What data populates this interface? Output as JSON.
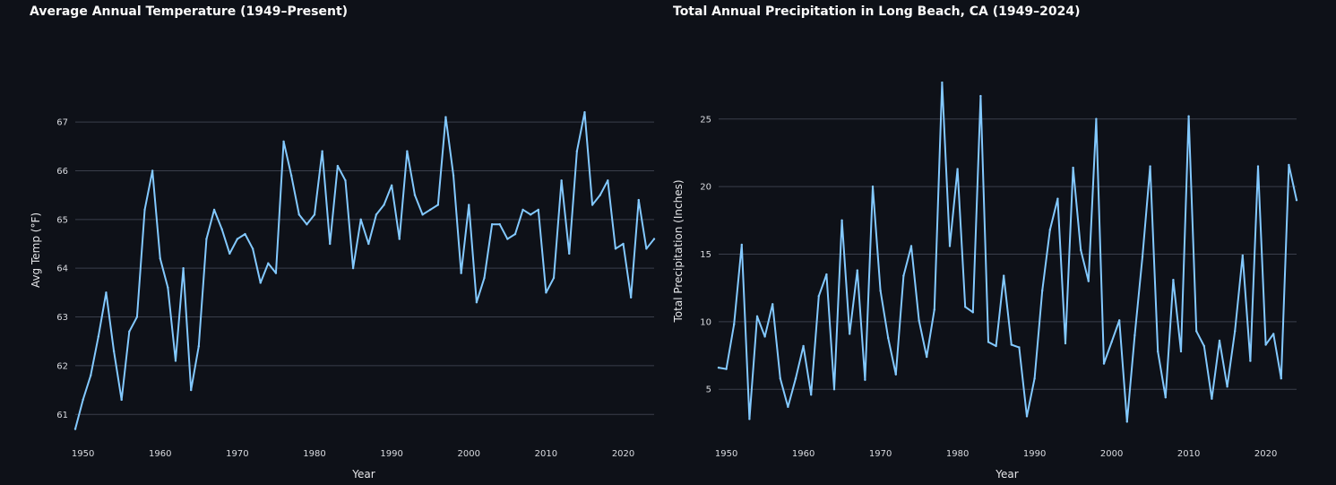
{
  "colors": {
    "background": "#0e1118",
    "line": "#83c9ff",
    "grid": "#3a3f4b",
    "text": "#fafafa"
  },
  "chart_data": [
    {
      "type": "line",
      "title": "Average Annual Temperature (1949–Present)",
      "xlabel": "Year",
      "ylabel": "Avg Temp (°F)",
      "xlim": [
        1949,
        2024
      ],
      "ylim": [
        60.6,
        68.4
      ],
      "xticks": [
        1950,
        1960,
        1970,
        1980,
        1990,
        2000,
        2010,
        2020
      ],
      "yticks": [
        61,
        62,
        63,
        64,
        65,
        66,
        67
      ],
      "grid": true,
      "series": [
        {
          "x": [
            1949,
            1950,
            1951,
            1952,
            1953,
            1954,
            1955,
            1956,
            1957,
            1958,
            1959,
            1960,
            1961,
            1962,
            1963,
            1964,
            1965,
            1966,
            1967,
            1968,
            1969,
            1970,
            1971,
            1972,
            1973,
            1974,
            1975,
            1976,
            1977,
            1978,
            1979,
            1980,
            1981,
            1982,
            1983,
            1984,
            1985,
            1986,
            1987,
            1988,
            1989,
            1990,
            1991,
            1992,
            1993,
            1994,
            1995,
            1996,
            1997,
            1998,
            1999,
            2000,
            2001,
            2002,
            2003,
            2004,
            2005,
            2006,
            2007,
            2008,
            2009,
            2010,
            2011,
            2012,
            2013,
            2014,
            2015,
            2016,
            2017,
            2018,
            2019,
            2020,
            2021,
            2022,
            2023,
            2024
          ],
          "values": [
            60.7,
            61.3,
            61.8,
            62.6,
            63.5,
            62.3,
            61.3,
            62.7,
            63.0,
            65.2,
            66.0,
            64.2,
            63.6,
            62.1,
            64.0,
            61.5,
            62.4,
            64.6,
            65.2,
            64.8,
            64.3,
            64.6,
            64.7,
            64.4,
            63.7,
            64.1,
            63.9,
            66.6,
            65.9,
            65.1,
            64.9,
            65.1,
            66.4,
            64.5,
            66.1,
            65.8,
            64.0,
            65.0,
            64.5,
            65.1,
            65.3,
            65.7,
            64.6,
            66.4,
            65.5,
            65.1,
            65.2,
            65.3,
            67.1,
            65.9,
            63.9,
            65.3,
            63.3,
            63.8,
            64.9,
            64.9,
            64.6,
            64.7,
            65.2,
            65.1,
            65.2,
            63.5,
            63.8,
            65.8,
            64.3,
            66.4,
            67.2,
            65.3,
            65.5,
            65.8,
            64.4,
            64.5,
            63.4,
            65.4,
            64.4,
            64.6
          ]
        }
      ]
    },
    {
      "type": "line",
      "title": "Total Annual Precipitation in Long Beach, CA (1949–2024)",
      "xlabel": "Year",
      "ylabel": "Total Precipitation (Inches)",
      "xlim": [
        1949,
        2024
      ],
      "ylim": [
        1.5,
        28.5
      ],
      "xticks": [
        1950,
        1960,
        1970,
        1980,
        1990,
        2000,
        2010,
        2020
      ],
      "yticks": [
        5,
        10,
        15,
        20,
        25
      ],
      "grid": true,
      "series": [
        {
          "x": [
            1949,
            1950,
            1951,
            1952,
            1953,
            1954,
            1955,
            1956,
            1957,
            1958,
            1959,
            1960,
            1961,
            1962,
            1963,
            1964,
            1965,
            1966,
            1967,
            1968,
            1969,
            1970,
            1971,
            1972,
            1973,
            1974,
            1975,
            1976,
            1977,
            1978,
            1979,
            1980,
            1981,
            1982,
            1983,
            1984,
            1985,
            1986,
            1987,
            1988,
            1989,
            1990,
            1991,
            1992,
            1993,
            1994,
            1995,
            1996,
            1997,
            1998,
            1999,
            2000,
            2001,
            2002,
            2003,
            2004,
            2005,
            2006,
            2007,
            2008,
            2009,
            2010,
            2011,
            2012,
            2013,
            2014,
            2015,
            2016,
            2017,
            2018,
            2019,
            2020,
            2021,
            2022,
            2023,
            2024
          ],
          "values": [
            6.6,
            6.5,
            9.8,
            15.7,
            2.8,
            10.4,
            8.9,
            11.3,
            5.8,
            3.7,
            5.8,
            8.2,
            4.6,
            11.9,
            13.5,
            5.0,
            17.5,
            9.1,
            13.8,
            5.7,
            20.0,
            12.3,
            8.8,
            6.1,
            13.4,
            15.6,
            10.1,
            7.4,
            10.9,
            27.7,
            15.6,
            21.3,
            11.1,
            10.7,
            26.7,
            8.5,
            8.2,
            13.4,
            8.3,
            8.1,
            3.0,
            5.8,
            12.3,
            16.8,
            19.1,
            8.4,
            21.4,
            15.3,
            13.0,
            25.0,
            6.9,
            8.5,
            10.1,
            2.6,
            9.0,
            14.8,
            21.5,
            7.8,
            4.4,
            13.1,
            7.8,
            25.2,
            9.3,
            8.2,
            4.3,
            8.6,
            5.2,
            9.3,
            14.9,
            7.1,
            21.5,
            8.3,
            9.1,
            5.8,
            21.6,
            19.0
          ]
        }
      ]
    }
  ]
}
